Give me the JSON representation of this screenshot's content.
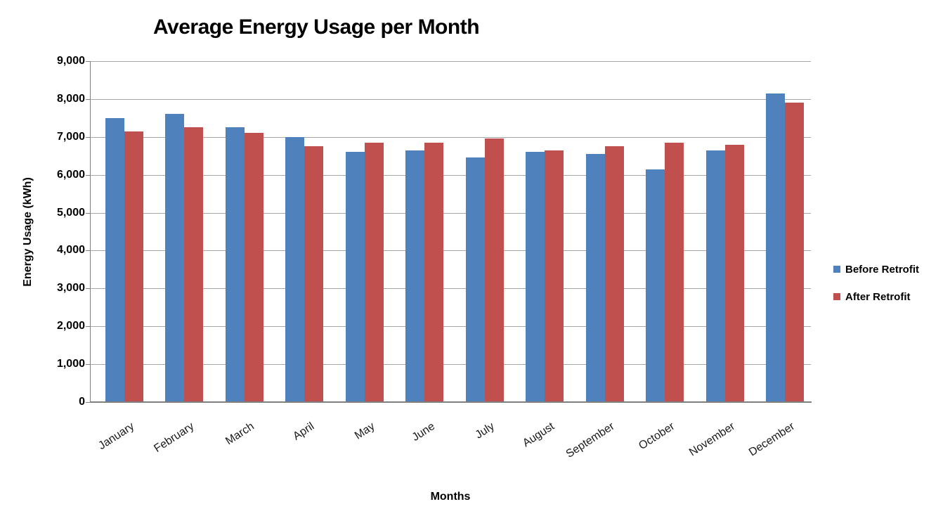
{
  "chart_data": {
    "type": "bar",
    "title": "Average Energy Usage per Month",
    "xlabel": "Months",
    "ylabel": "Energy Usage (kWh)",
    "categories": [
      "January",
      "February",
      "March",
      "April",
      "May",
      "June",
      "July",
      "August",
      "September",
      "October",
      "November",
      "December"
    ],
    "series": [
      {
        "name": "Before Retrofit",
        "color": "#4F81BD",
        "values": [
          7500,
          7600,
          7250,
          7000,
          6600,
          6650,
          6450,
          6600,
          6550,
          6150,
          6650,
          8150
        ]
      },
      {
        "name": "After Retrofit",
        "color": "#C0504D",
        "values": [
          7150,
          7250,
          7100,
          6750,
          6850,
          6850,
          6950,
          6650,
          6750,
          6850,
          6800,
          7900
        ]
      }
    ],
    "ylim": [
      0,
      9000
    ],
    "ytick_interval": 1000,
    "ytick_labels": [
      "0",
      "1,000",
      "2,000",
      "3,000",
      "4,000",
      "5,000",
      "6,000",
      "7,000",
      "8,000",
      "9,000"
    ],
    "grid": "horizontal",
    "legend_position": "right"
  },
  "colors": {
    "series_before": "#4F81BD",
    "series_after": "#C0504D",
    "gridline": "#A6A6A6",
    "axis": "#7F7F7F",
    "text": "#000000",
    "background": "#FFFFFF"
  }
}
